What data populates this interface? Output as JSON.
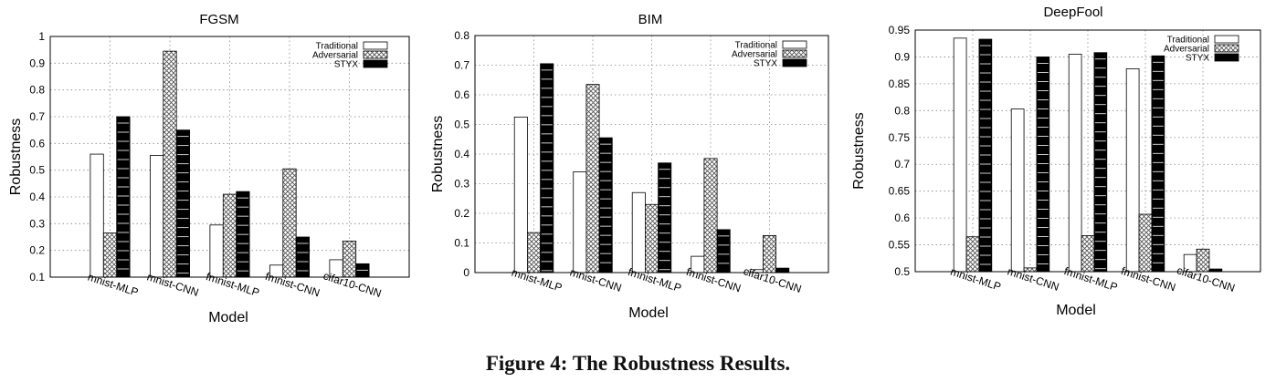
{
  "caption": "Figure 4: The Robustness Results.",
  "chart_data": [
    {
      "type": "bar",
      "title": "FGSM",
      "xlabel": "Model",
      "ylabel": "Robustness",
      "ylim": [
        0.1,
        1.0
      ],
      "yticks": [
        0.1,
        0.2,
        0.3,
        0.4,
        0.5,
        0.6,
        0.7,
        0.8,
        0.9,
        1.0
      ],
      "ytick_labels": [
        "0.1",
        "0.2",
        "0.3",
        "0.4",
        "0.5",
        "0.6",
        "0.7",
        "0.8",
        "0.9",
        "1"
      ],
      "grid": true,
      "legend_position": "top-right",
      "categories": [
        "mnist-MLP",
        "mnist-CNN",
        "fmnist-MLP",
        "fmnist-CNN",
        "cifar10-CNN"
      ],
      "series": [
        {
          "name": "Traditional",
          "pattern": "white",
          "values": [
            0.56,
            0.555,
            0.295,
            0.145,
            0.165
          ]
        },
        {
          "name": "Adversarial",
          "pattern": "crosshatch",
          "values": [
            0.265,
            0.945,
            0.41,
            0.505,
            0.235
          ]
        },
        {
          "name": "STYX",
          "pattern": "black",
          "values": [
            0.7,
            0.65,
            0.42,
            0.25,
            0.15
          ]
        }
      ]
    },
    {
      "type": "bar",
      "title": "BIM",
      "xlabel": "Model",
      "ylabel": "Robustness",
      "ylim": [
        0,
        0.8
      ],
      "yticks": [
        0,
        0.1,
        0.2,
        0.3,
        0.4,
        0.5,
        0.6,
        0.7,
        0.8
      ],
      "ytick_labels": [
        "0",
        "0.1",
        "0.2",
        "0.3",
        "0.4",
        "0.5",
        "0.6",
        "0.7",
        "0.8"
      ],
      "grid": true,
      "legend_position": "top-right",
      "categories": [
        "mnist-MLP",
        "mnist-CNN",
        "fmnist-MLP",
        "fmnist-CNN",
        "cifar10-CNN"
      ],
      "series": [
        {
          "name": "Traditional",
          "pattern": "white",
          "values": [
            0.525,
            0.34,
            0.27,
            0.055,
            0.01
          ]
        },
        {
          "name": "Adversarial",
          "pattern": "crosshatch",
          "values": [
            0.135,
            0.635,
            0.23,
            0.385,
            0.125
          ]
        },
        {
          "name": "STYX",
          "pattern": "black",
          "values": [
            0.705,
            0.455,
            0.37,
            0.145,
            0.015
          ]
        }
      ]
    },
    {
      "type": "bar",
      "title": "DeepFool",
      "xlabel": "Model",
      "ylabel": "Robustness",
      "ylim": [
        0.5,
        0.95
      ],
      "yticks": [
        0.5,
        0.55,
        0.6,
        0.65,
        0.7,
        0.75,
        0.8,
        0.85,
        0.9,
        0.95
      ],
      "ytick_labels": [
        "0.5",
        "0.55",
        "0.6",
        "0.65",
        "0.7",
        "0.75",
        "0.8",
        "0.85",
        "0.9",
        "0.95"
      ],
      "grid": true,
      "legend_position": "top-right",
      "categories": [
        "mnist-MLP",
        "mnist-CNN",
        "fmnist-MLP",
        "fmnist-CNN",
        "cifar10-CNN"
      ],
      "series": [
        {
          "name": "Traditional",
          "pattern": "white",
          "values": [
            0.935,
            0.803,
            0.905,
            0.878,
            0.532
          ]
        },
        {
          "name": "Adversarial",
          "pattern": "crosshatch",
          "values": [
            0.565,
            0.507,
            0.567,
            0.607,
            0.542
          ]
        },
        {
          "name": "STYX",
          "pattern": "black",
          "values": [
            0.933,
            0.9,
            0.908,
            0.902,
            0.505
          ]
        }
      ]
    }
  ]
}
